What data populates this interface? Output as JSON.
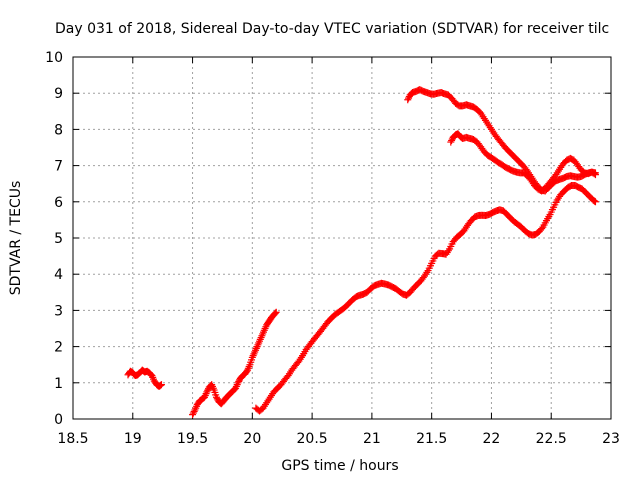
{
  "chart_data": {
    "type": "scatter",
    "title": "Day 031 of 2018, Sidereal Day-to-day VTEC variation (SDTVAR) for receiver tilc",
    "xlabel": "GPS time / hours",
    "ylabel": "SDTVAR / TECUs",
    "xlim": [
      18.5,
      23
    ],
    "ylim": [
      0,
      10
    ],
    "xticks": [
      "18.5",
      "19",
      "19.5",
      "20",
      "20.5",
      "21",
      "21.5",
      "22",
      "22.5",
      "23"
    ],
    "yticks": [
      "0",
      "1",
      "2",
      "3",
      "4",
      "5",
      "6",
      "7",
      "8",
      "9",
      "10"
    ],
    "grid": true,
    "marker": "+",
    "color": "#ff0000",
    "series": [
      {
        "name": "seg1",
        "points": [
          [
            18.96,
            1.22
          ],
          [
            18.98,
            1.32
          ],
          [
            19.0,
            1.28
          ],
          [
            19.02,
            1.2
          ],
          [
            19.04,
            1.22
          ],
          [
            19.06,
            1.28
          ],
          [
            19.08,
            1.35
          ],
          [
            19.1,
            1.3
          ],
          [
            19.12,
            1.32
          ],
          [
            19.14,
            1.27
          ],
          [
            19.16,
            1.2
          ],
          [
            19.18,
            1.05
          ],
          [
            19.2,
            0.95
          ],
          [
            19.22,
            0.9
          ],
          [
            19.24,
            0.95
          ]
        ]
      },
      {
        "name": "seg2",
        "points": [
          [
            19.5,
            0.12
          ],
          [
            19.52,
            0.25
          ],
          [
            19.54,
            0.4
          ],
          [
            19.56,
            0.5
          ],
          [
            19.58,
            0.55
          ],
          [
            19.6,
            0.6
          ],
          [
            19.62,
            0.75
          ],
          [
            19.64,
            0.88
          ],
          [
            19.66,
            0.95
          ],
          [
            19.68,
            0.8
          ],
          [
            19.7,
            0.6
          ],
          [
            19.72,
            0.48
          ],
          [
            19.74,
            0.42
          ],
          [
            19.76,
            0.5
          ],
          [
            19.78,
            0.58
          ],
          [
            19.8,
            0.65
          ],
          [
            19.82,
            0.72
          ],
          [
            19.84,
            0.78
          ],
          [
            19.86,
            0.85
          ],
          [
            19.88,
            1.0
          ],
          [
            19.9,
            1.12
          ],
          [
            19.92,
            1.2
          ],
          [
            19.94,
            1.25
          ],
          [
            19.96,
            1.35
          ],
          [
            19.98,
            1.5
          ],
          [
            20.0,
            1.7
          ],
          [
            20.02,
            1.85
          ],
          [
            20.04,
            2.0
          ],
          [
            20.06,
            2.15
          ],
          [
            20.08,
            2.3
          ],
          [
            20.1,
            2.45
          ],
          [
            20.12,
            2.6
          ],
          [
            20.14,
            2.7
          ],
          [
            20.16,
            2.8
          ],
          [
            20.18,
            2.88
          ],
          [
            20.2,
            2.95
          ]
        ]
      },
      {
        "name": "seg3",
        "points": [
          [
            20.03,
            0.3
          ],
          [
            20.06,
            0.22
          ],
          [
            20.09,
            0.3
          ],
          [
            20.12,
            0.45
          ],
          [
            20.15,
            0.6
          ],
          [
            20.18,
            0.75
          ],
          [
            20.21,
            0.85
          ],
          [
            20.24,
            0.95
          ],
          [
            20.27,
            1.08
          ],
          [
            20.3,
            1.2
          ],
          [
            20.33,
            1.35
          ],
          [
            20.36,
            1.48
          ],
          [
            20.39,
            1.6
          ],
          [
            20.42,
            1.75
          ],
          [
            20.45,
            1.92
          ],
          [
            20.48,
            2.05
          ],
          [
            20.51,
            2.18
          ],
          [
            20.54,
            2.3
          ],
          [
            20.57,
            2.42
          ],
          [
            20.6,
            2.55
          ],
          [
            20.63,
            2.68
          ],
          [
            20.66,
            2.78
          ],
          [
            20.69,
            2.88
          ],
          [
            20.72,
            2.95
          ],
          [
            20.75,
            3.02
          ],
          [
            20.78,
            3.1
          ],
          [
            20.81,
            3.2
          ],
          [
            20.84,
            3.3
          ],
          [
            20.87,
            3.38
          ],
          [
            20.9,
            3.42
          ],
          [
            20.93,
            3.45
          ],
          [
            20.96,
            3.5
          ],
          [
            20.99,
            3.6
          ],
          [
            21.02,
            3.68
          ],
          [
            21.05,
            3.72
          ],
          [
            21.08,
            3.75
          ],
          [
            21.11,
            3.73
          ],
          [
            21.14,
            3.7
          ],
          [
            21.17,
            3.65
          ],
          [
            21.2,
            3.6
          ],
          [
            21.23,
            3.52
          ],
          [
            21.26,
            3.45
          ],
          [
            21.29,
            3.42
          ],
          [
            21.32,
            3.5
          ],
          [
            21.35,
            3.62
          ],
          [
            21.38,
            3.72
          ],
          [
            21.41,
            3.82
          ],
          [
            21.44,
            3.95
          ],
          [
            21.47,
            4.1
          ],
          [
            21.5,
            4.3
          ],
          [
            21.53,
            4.5
          ],
          [
            21.56,
            4.58
          ],
          [
            21.59,
            4.57
          ],
          [
            21.62,
            4.55
          ],
          [
            21.65,
            4.7
          ],
          [
            21.68,
            4.9
          ],
          [
            21.71,
            5.02
          ],
          [
            21.74,
            5.1
          ],
          [
            21.77,
            5.2
          ],
          [
            21.8,
            5.35
          ],
          [
            21.83,
            5.48
          ],
          [
            21.86,
            5.58
          ],
          [
            21.89,
            5.62
          ],
          [
            21.92,
            5.63
          ],
          [
            21.95,
            5.62
          ],
          [
            21.98,
            5.65
          ],
          [
            22.01,
            5.7
          ],
          [
            22.04,
            5.75
          ],
          [
            22.07,
            5.78
          ],
          [
            22.1,
            5.75
          ],
          [
            22.13,
            5.65
          ],
          [
            22.16,
            5.55
          ],
          [
            22.19,
            5.45
          ],
          [
            22.22,
            5.38
          ],
          [
            22.25,
            5.3
          ],
          [
            22.28,
            5.2
          ],
          [
            22.31,
            5.12
          ],
          [
            22.34,
            5.08
          ],
          [
            22.37,
            5.1
          ],
          [
            22.4,
            5.18
          ],
          [
            22.43,
            5.3
          ],
          [
            22.46,
            5.48
          ],
          [
            22.49,
            5.65
          ],
          [
            22.52,
            5.85
          ],
          [
            22.55,
            6.05
          ],
          [
            22.58,
            6.2
          ],
          [
            22.61,
            6.3
          ],
          [
            22.64,
            6.4
          ],
          [
            22.67,
            6.45
          ],
          [
            22.7,
            6.45
          ],
          [
            22.73,
            6.4
          ],
          [
            22.76,
            6.35
          ],
          [
            22.79,
            6.25
          ],
          [
            22.82,
            6.15
          ],
          [
            22.85,
            6.05
          ],
          [
            22.87,
            6.0
          ]
        ]
      },
      {
        "name": "seg4",
        "points": [
          [
            21.3,
            8.82
          ],
          [
            21.32,
            8.95
          ],
          [
            21.34,
            9.02
          ],
          [
            21.37,
            9.05
          ],
          [
            21.4,
            9.1
          ],
          [
            21.43,
            9.05
          ],
          [
            21.46,
            9.02
          ],
          [
            21.49,
            8.98
          ],
          [
            21.52,
            8.97
          ],
          [
            21.55,
            9.0
          ],
          [
            21.58,
            9.02
          ],
          [
            21.61,
            8.98
          ],
          [
            21.64,
            8.95
          ],
          [
            21.67,
            8.85
          ],
          [
            21.7,
            8.72
          ],
          [
            21.73,
            8.65
          ],
          [
            21.76,
            8.65
          ],
          [
            21.79,
            8.68
          ],
          [
            21.82,
            8.65
          ],
          [
            21.85,
            8.62
          ],
          [
            21.88,
            8.55
          ],
          [
            21.91,
            8.45
          ],
          [
            21.94,
            8.3
          ],
          [
            21.97,
            8.15
          ],
          [
            22.0,
            8.0
          ],
          [
            22.03,
            7.85
          ],
          [
            22.06,
            7.72
          ],
          [
            22.09,
            7.6
          ],
          [
            22.12,
            7.48
          ],
          [
            22.15,
            7.38
          ],
          [
            22.18,
            7.28
          ],
          [
            22.21,
            7.18
          ],
          [
            22.24,
            7.08
          ],
          [
            22.27,
            6.98
          ],
          [
            22.3,
            6.85
          ],
          [
            22.33,
            6.7
          ],
          [
            22.36,
            6.55
          ],
          [
            22.39,
            6.42
          ],
          [
            22.42,
            6.32
          ],
          [
            22.45,
            6.3
          ],
          [
            22.48,
            6.4
          ],
          [
            22.51,
            6.5
          ],
          [
            22.54,
            6.58
          ],
          [
            22.57,
            6.62
          ],
          [
            22.6,
            6.65
          ],
          [
            22.63,
            6.7
          ],
          [
            22.66,
            6.72
          ],
          [
            22.69,
            6.7
          ],
          [
            22.72,
            6.68
          ],
          [
            22.75,
            6.7
          ],
          [
            22.78,
            6.75
          ],
          [
            22.81,
            6.8
          ],
          [
            22.84,
            6.82
          ],
          [
            22.87,
            6.75
          ]
        ]
      },
      {
        "name": "seg5",
        "points": [
          [
            21.66,
            7.65
          ],
          [
            21.68,
            7.78
          ],
          [
            21.7,
            7.85
          ],
          [
            21.72,
            7.88
          ],
          [
            21.74,
            7.8
          ],
          [
            21.76,
            7.75
          ],
          [
            21.79,
            7.78
          ],
          [
            21.82,
            7.75
          ],
          [
            21.85,
            7.72
          ],
          [
            21.88,
            7.65
          ],
          [
            21.91,
            7.52
          ],
          [
            21.94,
            7.38
          ],
          [
            21.97,
            7.28
          ],
          [
            22.0,
            7.22
          ],
          [
            22.03,
            7.15
          ],
          [
            22.06,
            7.08
          ],
          [
            22.09,
            7.02
          ],
          [
            22.12,
            6.95
          ],
          [
            22.15,
            6.9
          ],
          [
            22.18,
            6.85
          ],
          [
            22.21,
            6.82
          ],
          [
            22.24,
            6.8
          ],
          [
            22.27,
            6.8
          ],
          [
            22.3,
            6.72
          ],
          [
            22.33,
            6.6
          ],
          [
            22.36,
            6.45
          ],
          [
            22.39,
            6.35
          ],
          [
            22.42,
            6.3
          ],
          [
            22.45,
            6.38
          ],
          [
            22.48,
            6.5
          ],
          [
            22.51,
            6.62
          ],
          [
            22.54,
            6.75
          ],
          [
            22.57,
            6.9
          ],
          [
            22.6,
            7.05
          ],
          [
            22.63,
            7.15
          ],
          [
            22.66,
            7.2
          ],
          [
            22.69,
            7.15
          ],
          [
            22.72,
            7.02
          ],
          [
            22.75,
            6.88
          ],
          [
            22.78,
            6.8
          ],
          [
            22.81,
            6.78
          ],
          [
            22.84,
            6.82
          ],
          [
            22.87,
            6.8
          ]
        ]
      }
    ]
  }
}
